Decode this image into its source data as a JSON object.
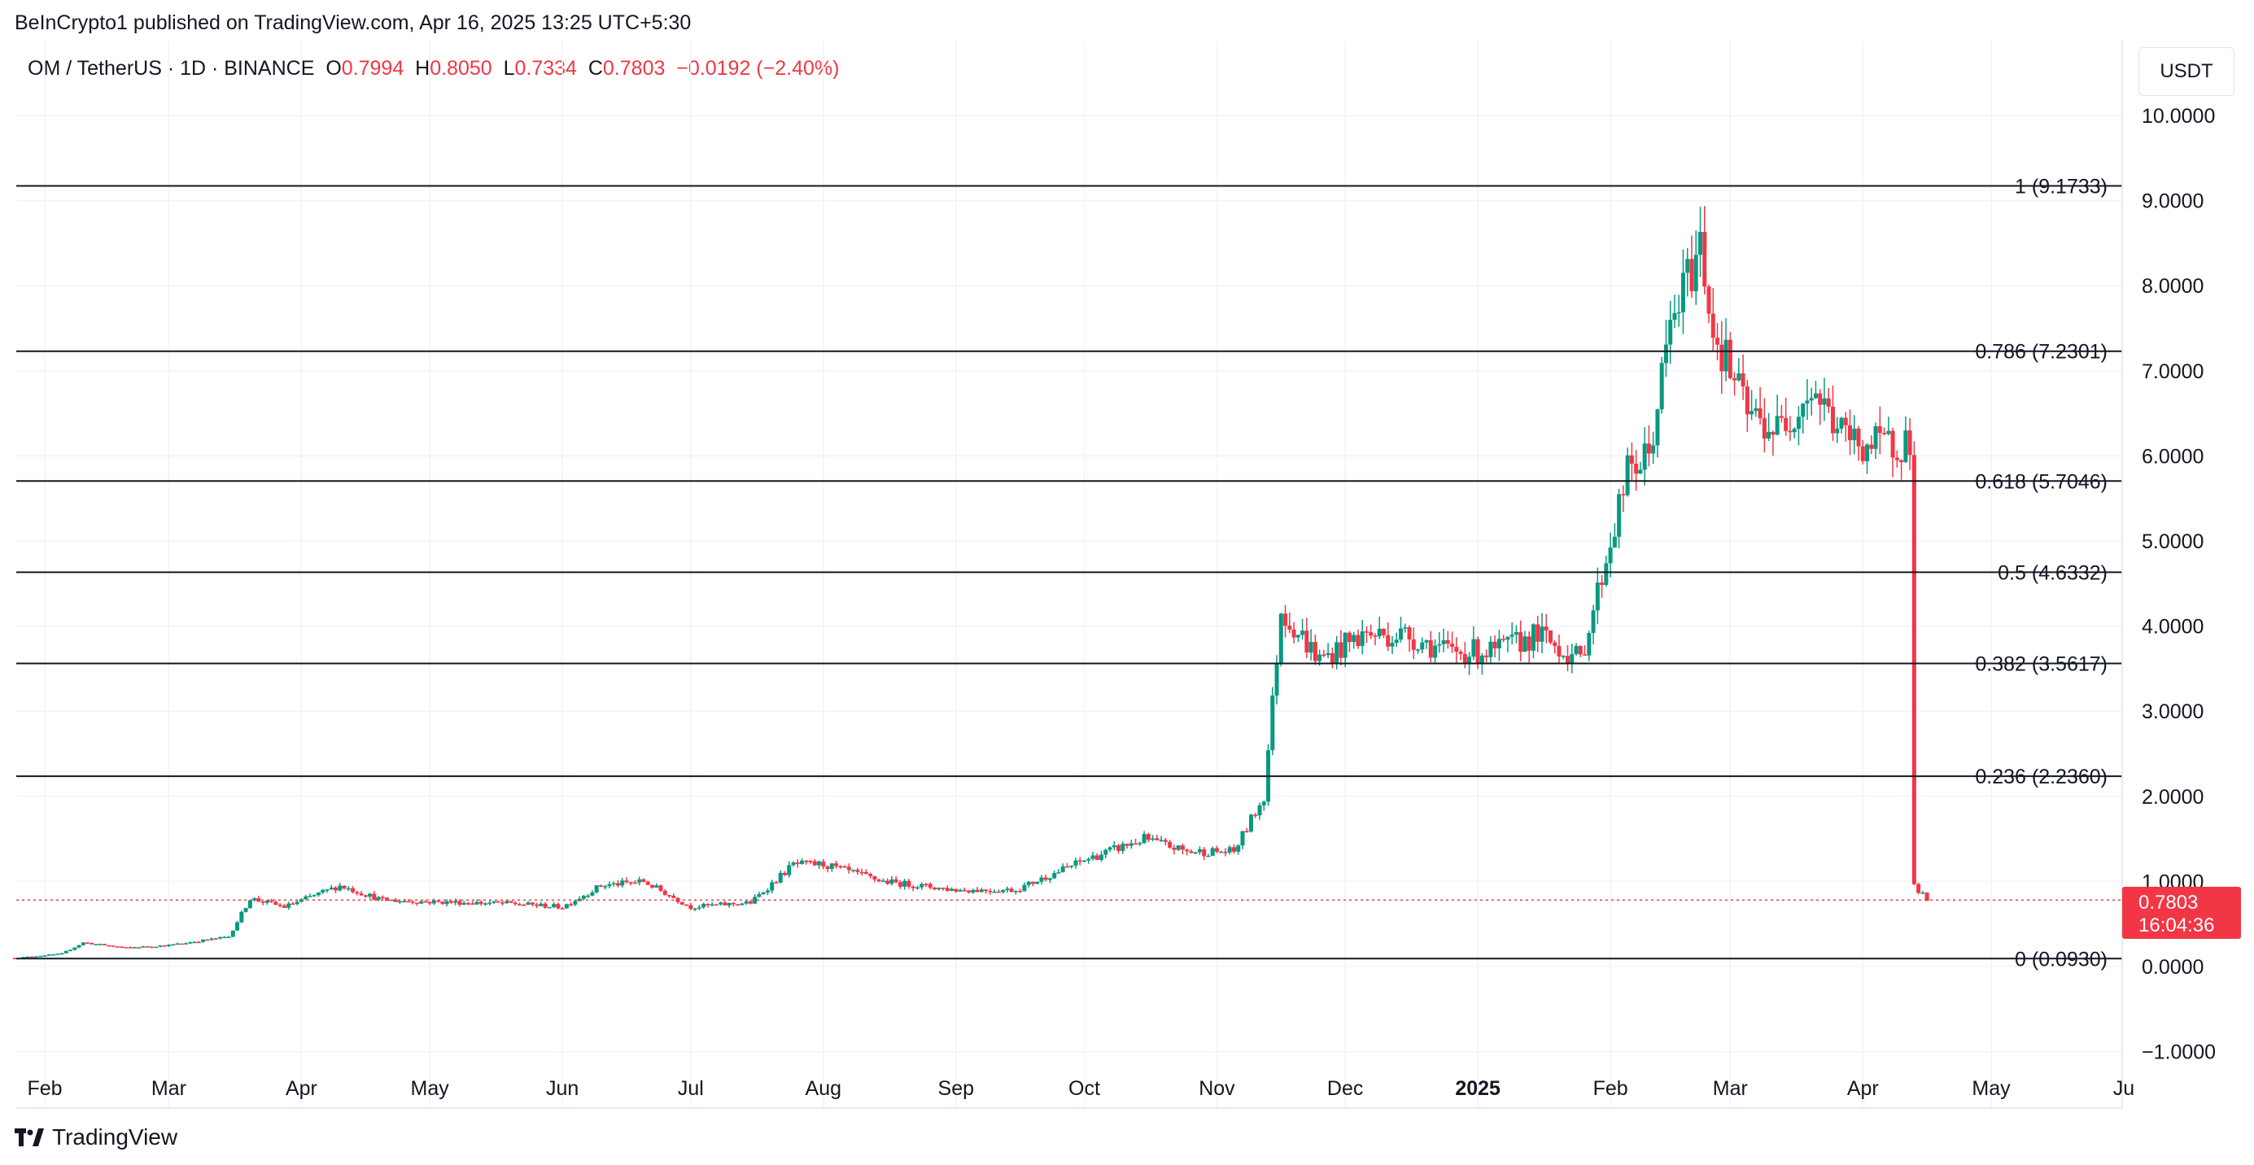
{
  "header": {
    "published": "BeInCrypto1 published on TradingView.com, Apr 16, 2025 13:25 UTC+5:30"
  },
  "legend": {
    "symbol": "OM / TetherUS · 1D · BINANCE",
    "o_label": "O",
    "o_value": "0.7994",
    "h_label": "H",
    "h_value": "0.8050",
    "l_label": "L",
    "l_value": "0.7334",
    "c_label": "C",
    "c_value": "0.7803",
    "change": "−0.0192 (−2.40%)"
  },
  "axis": {
    "unit": "USDT"
  },
  "price_tag": {
    "price": "0.7803",
    "countdown": "16:04:36"
  },
  "brand": {
    "name": "TradingView"
  },
  "colors": {
    "up": "#089981",
    "down": "#f23645",
    "line": "#131722",
    "grid": "#f0f3fa"
  },
  "chart_data": {
    "type": "candlestick",
    "title": "OM / TetherUS · 1D · BINANCE",
    "ylim": [
      -1.2,
      10.9
    ],
    "y_ticks": [
      "−1.0000",
      "0.0000",
      "1.0000",
      "2.0000",
      "3.0000",
      "4.0000",
      "5.0000",
      "6.0000",
      "7.0000",
      "8.0000",
      "9.0000",
      "10.0000"
    ],
    "y_tick_values": [
      -1,
      0,
      1,
      2,
      3,
      4,
      5,
      6,
      7,
      8,
      9,
      10
    ],
    "x_ticks": [
      {
        "label": "Feb",
        "date": "2024-02-01",
        "bold": false
      },
      {
        "label": "Mar",
        "date": "2024-03-01",
        "bold": false
      },
      {
        "label": "Apr",
        "date": "2024-04-01",
        "bold": false
      },
      {
        "label": "May",
        "date": "2024-05-01",
        "bold": false
      },
      {
        "label": "Jun",
        "date": "2024-06-01",
        "bold": false
      },
      {
        "label": "Jul",
        "date": "2024-07-01",
        "bold": false
      },
      {
        "label": "Aug",
        "date": "2024-08-01",
        "bold": false
      },
      {
        "label": "Sep",
        "date": "2024-09-01",
        "bold": false
      },
      {
        "label": "Oct",
        "date": "2024-10-01",
        "bold": false
      },
      {
        "label": "Nov",
        "date": "2024-11-01",
        "bold": false
      },
      {
        "label": "Dec",
        "date": "2024-12-01",
        "bold": false
      },
      {
        "label": "2025",
        "date": "2025-01-01",
        "bold": true
      },
      {
        "label": "Feb",
        "date": "2025-02-01",
        "bold": false
      },
      {
        "label": "Mar",
        "date": "2025-03-01",
        "bold": false
      },
      {
        "label": "Apr",
        "date": "2025-04-01",
        "bold": false
      },
      {
        "label": "May",
        "date": "2025-05-01",
        "bold": false
      },
      {
        "label": "Ju",
        "date": "2025-06-01",
        "bold": false
      }
    ],
    "fib_levels": [
      {
        "label": "1 (9.1733)",
        "value": 9.1733
      },
      {
        "label": "0.786 (7.2301)",
        "value": 7.2301
      },
      {
        "label": "0.618 (5.7046)",
        "value": 5.7046
      },
      {
        "label": "0.5 (4.6332)",
        "value": 4.6332
      },
      {
        "label": "0.382 (3.5617)",
        "value": 3.5617
      },
      {
        "label": "0.236 (2.2360)",
        "value": 2.236
      },
      {
        "label": "0 (0.0930)",
        "value": 0.093
      }
    ],
    "current_price": 0.7803,
    "price_anchors": [
      [
        "2024-01-25",
        0.1
      ],
      [
        "2024-02-05",
        0.15
      ],
      [
        "2024-02-10",
        0.28
      ],
      [
        "2024-02-20",
        0.22
      ],
      [
        "2024-03-01",
        0.25
      ],
      [
        "2024-03-15",
        0.35
      ],
      [
        "2024-03-20",
        0.8
      ],
      [
        "2024-03-28",
        0.7
      ],
      [
        "2024-04-10",
        0.95
      ],
      [
        "2024-04-20",
        0.78
      ],
      [
        "2024-05-01",
        0.76
      ],
      [
        "2024-05-20",
        0.74
      ],
      [
        "2024-06-01",
        0.7
      ],
      [
        "2024-06-10",
        0.95
      ],
      [
        "2024-06-20",
        1.0
      ],
      [
        "2024-07-01",
        0.7
      ],
      [
        "2024-07-15",
        0.75
      ],
      [
        "2024-07-25",
        1.2
      ],
      [
        "2024-08-01",
        1.2
      ],
      [
        "2024-08-15",
        1.0
      ],
      [
        "2024-09-01",
        0.9
      ],
      [
        "2024-09-15",
        0.9
      ],
      [
        "2024-10-01",
        1.25
      ],
      [
        "2024-10-15",
        1.5
      ],
      [
        "2024-10-25",
        1.35
      ],
      [
        "2024-11-05",
        1.35
      ],
      [
        "2024-11-12",
        2.0
      ],
      [
        "2024-11-16",
        4.2
      ],
      [
        "2024-11-25",
        3.6
      ],
      [
        "2024-12-05",
        3.9
      ],
      [
        "2024-12-15",
        3.9
      ],
      [
        "2024-12-25",
        3.7
      ],
      [
        "2025-01-05",
        3.7
      ],
      [
        "2025-01-15",
        3.9
      ],
      [
        "2025-01-25",
        3.6
      ],
      [
        "2025-01-31",
        4.8
      ],
      [
        "2025-02-05",
        5.8
      ],
      [
        "2025-02-10",
        6.0
      ],
      [
        "2025-02-15",
        7.5
      ],
      [
        "2025-02-22",
        8.5
      ],
      [
        "2025-02-25",
        7.5
      ],
      [
        "2025-03-05",
        6.5
      ],
      [
        "2025-03-12",
        6.3
      ],
      [
        "2025-03-20",
        6.8
      ],
      [
        "2025-03-28",
        6.2
      ],
      [
        "2025-04-05",
        6.1
      ],
      [
        "2025-04-12",
        6.2
      ],
      [
        "2025-04-13",
        0.95
      ],
      [
        "2025-04-16",
        0.78
      ]
    ]
  }
}
